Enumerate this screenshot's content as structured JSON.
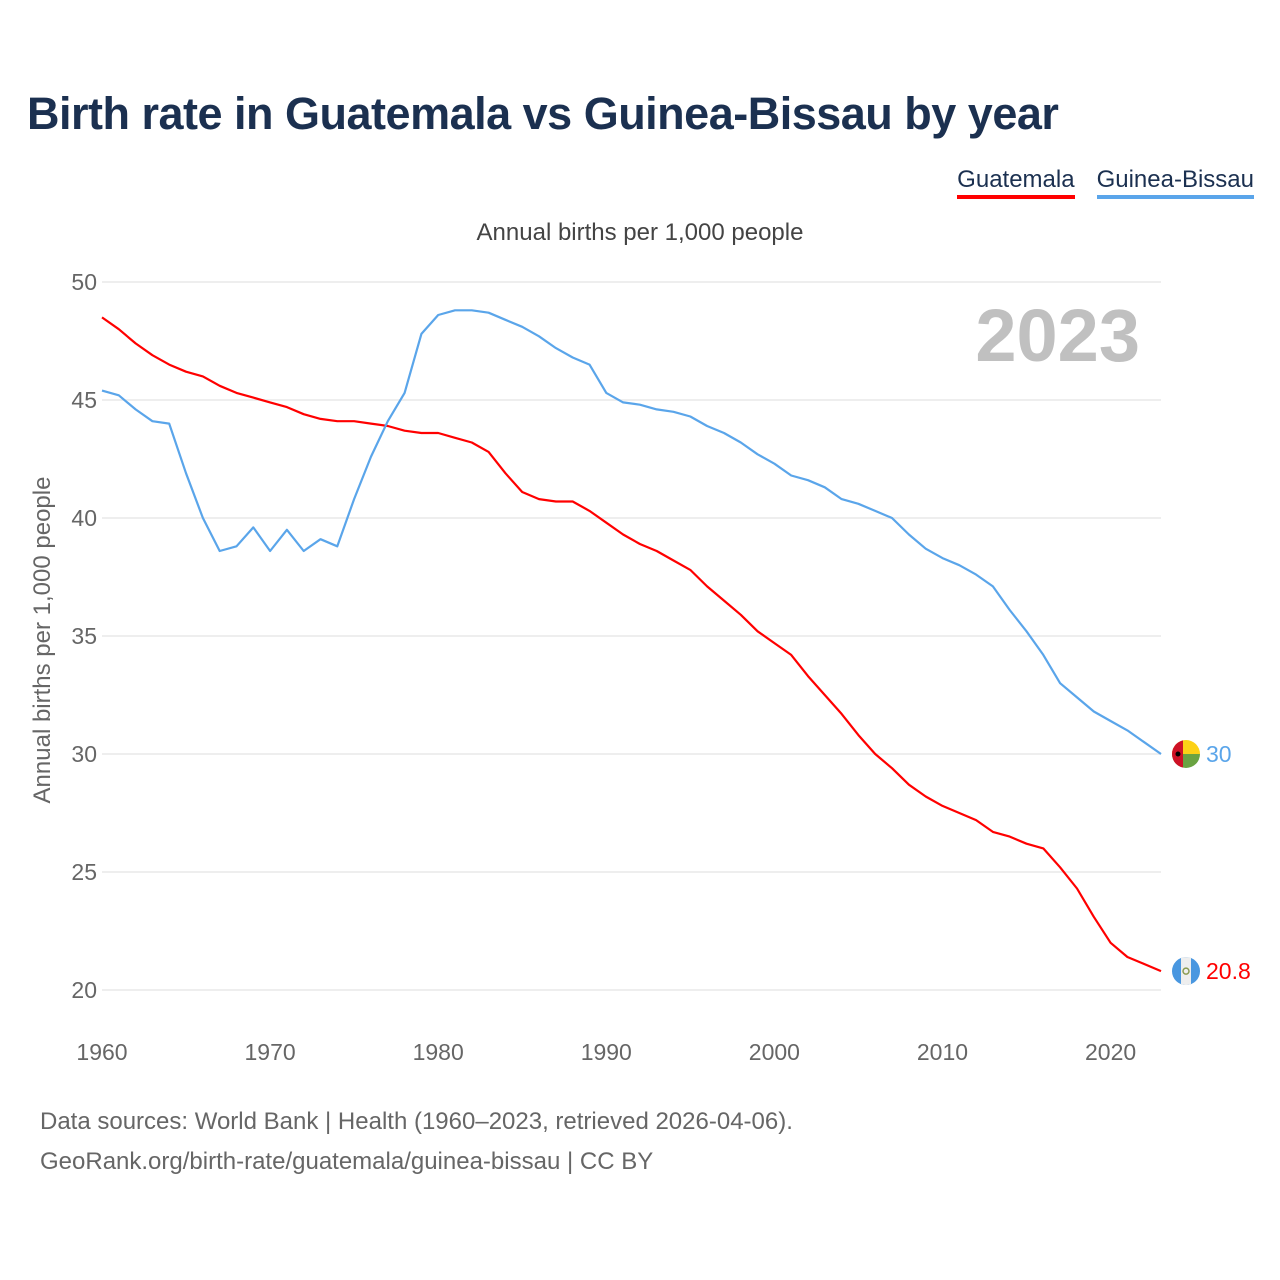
{
  "chart_data": {
    "type": "line",
    "title": "Birth rate in Guatemala vs Guinea-Bissau by year",
    "subtitle": "Annual births per 1,000 people",
    "ylabel": "Annual births per 1,000 people",
    "xlabel": "",
    "year_watermark": "2023",
    "xlim": [
      1960,
      2023
    ],
    "ylim": [
      20,
      50
    ],
    "x_ticks": [
      "1960",
      "1970",
      "1980",
      "1990",
      "2000",
      "2010",
      "2020"
    ],
    "y_ticks": [
      "20",
      "25",
      "30",
      "35",
      "40",
      "45",
      "50"
    ],
    "grid": true,
    "legend_position": "top-right",
    "x": [
      1960,
      1961,
      1962,
      1963,
      1964,
      1965,
      1966,
      1967,
      1968,
      1969,
      1970,
      1971,
      1972,
      1973,
      1974,
      1975,
      1976,
      1977,
      1978,
      1979,
      1980,
      1981,
      1982,
      1983,
      1984,
      1985,
      1986,
      1987,
      1988,
      1989,
      1990,
      1991,
      1992,
      1993,
      1994,
      1995,
      1996,
      1997,
      1998,
      1999,
      2000,
      2001,
      2002,
      2003,
      2004,
      2005,
      2006,
      2007,
      2008,
      2009,
      2010,
      2011,
      2012,
      2013,
      2014,
      2015,
      2016,
      2017,
      2018,
      2019,
      2020,
      2021,
      2022,
      2023
    ],
    "series": [
      {
        "name": "Guatemala",
        "color": "#ff0000",
        "end_label": "20.8",
        "flag": "guatemala-flag",
        "values": [
          48.5,
          48.0,
          47.4,
          46.9,
          46.5,
          46.2,
          46.0,
          45.6,
          45.3,
          45.1,
          44.9,
          44.7,
          44.4,
          44.2,
          44.1,
          44.1,
          44.0,
          43.9,
          43.7,
          43.6,
          43.6,
          43.4,
          43.2,
          42.8,
          41.9,
          41.1,
          40.8,
          40.7,
          40.7,
          40.3,
          39.8,
          39.3,
          38.9,
          38.6,
          38.2,
          37.8,
          37.1,
          36.5,
          35.9,
          35.2,
          34.7,
          34.2,
          33.3,
          32.5,
          31.7,
          30.8,
          30.0,
          29.4,
          28.7,
          28.2,
          27.8,
          27.5,
          27.2,
          26.7,
          26.5,
          26.2,
          26.0,
          25.2,
          24.3,
          23.1,
          22.0,
          21.4,
          21.1,
          20.8
        ]
      },
      {
        "name": "Guinea-Bissau",
        "color": "#5aa5ea",
        "end_label": "30",
        "flag": "guinea-bissau-flag",
        "values": [
          45.4,
          45.2,
          44.6,
          44.1,
          44.0,
          41.9,
          40.0,
          38.6,
          38.8,
          39.6,
          38.6,
          39.5,
          38.6,
          39.1,
          38.8,
          40.8,
          42.6,
          44.1,
          45.3,
          47.8,
          48.6,
          48.8,
          48.8,
          48.7,
          48.4,
          48.1,
          47.7,
          47.2,
          46.8,
          46.5,
          45.3,
          44.9,
          44.8,
          44.6,
          44.5,
          44.3,
          43.9,
          43.6,
          43.2,
          42.7,
          42.3,
          41.8,
          41.6,
          41.3,
          40.8,
          40.6,
          40.3,
          40.0,
          39.3,
          38.7,
          38.3,
          38.0,
          37.6,
          37.1,
          36.1,
          35.2,
          34.2,
          33.0,
          32.4,
          31.8,
          31.4,
          31.0,
          30.5,
          30.0
        ]
      }
    ]
  },
  "footer": {
    "line1": "Data sources: World Bank | Health (1960–2023, retrieved 2026-04-06).",
    "line2": "GeoRank.org/birth-rate/guatemala/guinea-bissau | CC BY"
  }
}
